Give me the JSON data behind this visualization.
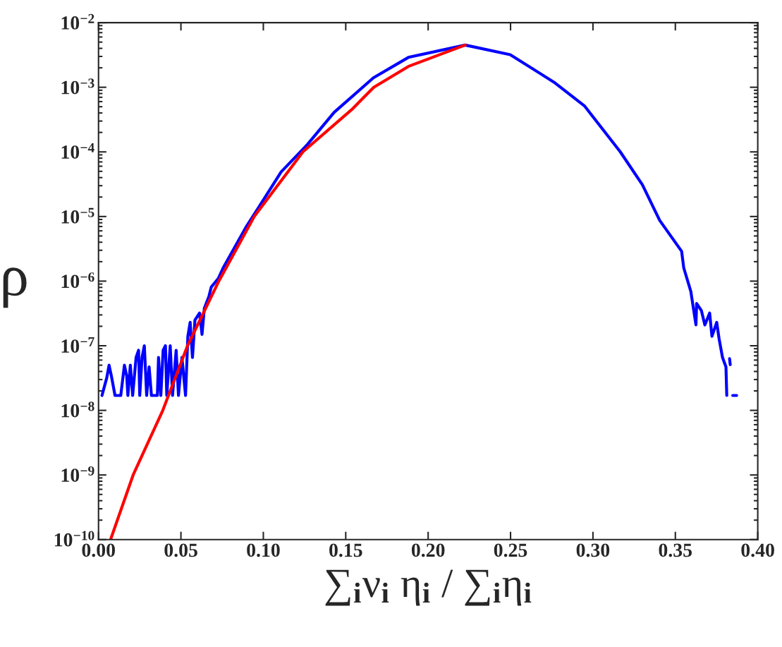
{
  "chart_data": {
    "type": "line",
    "xlabel": "∑$_{i}$ν$_{i}$ η$_{i}$ / ∑$_{i}$η$_{i}$",
    "ylabel": "ρ",
    "log": "y",
    "grid": false,
    "legend": false,
    "marker": "none",
    "line_style": "solid",
    "xlim": [
      0,
      0.4
    ],
    "xticks": [
      {
        "value": 0,
        "label": "0.00"
      },
      {
        "value": 0.05,
        "label": "0.05"
      },
      {
        "value": 0.1,
        "label": "0.10"
      },
      {
        "value": 0.15,
        "label": "0.15"
      },
      {
        "value": 0.2,
        "label": "0.20"
      },
      {
        "value": 0.25,
        "label": "0.25"
      },
      {
        "value": 0.3,
        "label": "0.30"
      },
      {
        "value": 0.35,
        "label": "0.35"
      },
      {
        "value": 0.4,
        "label": "0.40"
      }
    ],
    "ylim": [
      1e-10,
      0.01
    ],
    "yticks": [
      {
        "value": 1e-10,
        "label": "10$^{−10}$"
      },
      {
        "value": 1e-09,
        "label": "10$^{−9}$"
      },
      {
        "value": 1e-08,
        "label": "10$^{−8}$"
      },
      {
        "value": 1e-07,
        "label": "10$^{−7}$"
      },
      {
        "value": 1e-06,
        "label": "10$^{−6}$"
      },
      {
        "value": 1e-05,
        "label": "10$^{−5}$"
      },
      {
        "value": 0.0001,
        "label": "10$^{−4}$"
      },
      {
        "value": 0.001,
        "label": "10$^{−3}$"
      },
      {
        "value": 0.01,
        "label": "10$^{−2}$"
      }
    ],
    "series": [
      {
        "color": "#0000ff",
        "x": [
          0.0021,
          0.005,
          0.0064,
          0.0078,
          0.01,
          0.0135,
          0.0157,
          0.0171,
          0.0178,
          0.0193,
          0.0207,
          0.0228,
          0.0243,
          0.025,
          0.0264,
          0.0278,
          0.0292,
          0.0307,
          0.0321,
          0.0357,
          0.0364,
          0.0378,
          0.0392,
          0.0406,
          0.0414,
          0.0435,
          0.0449,
          0.0471,
          0.0485,
          0.0506,
          0.0528,
          0.0542,
          0.0556,
          0.057,
          0.0585,
          0.0613,
          0.0628,
          0.0642,
          0.067,
          0.0684,
          0.0727,
          0.0756,
          0.0894,
          0.0973,
          0.1108,
          0.1267,
          0.143,
          0.1668,
          0.188,
          0.2225,
          0.2498,
          0.2763,
          0.295,
          0.3166,
          0.33,
          0.3405,
          0.3538,
          0.3551,
          0.3594,
          0.3625,
          0.3629,
          0.3658,
          0.3679,
          0.3708,
          0.3722,
          0.3751,
          0.3765,
          0.3786,
          0.3807,
          0.3812,
          0.382,
          0.3829,
          0.3833,
          0.384,
          0.3848,
          0.3872
        ],
        "values": [
          1.7e-08,
          3.2e-08,
          5e-08,
          3.4e-08,
          1.7e-08,
          1.7e-08,
          5e-08,
          3.4e-08,
          1.7e-08,
          5e-08,
          1.7e-08,
          6.6e-08,
          8.5e-08,
          1.7e-08,
          6.6e-08,
          1e-07,
          1.7e-08,
          4.7e-08,
          1.7e-08,
          1.7e-08,
          6.6e-08,
          1.7e-08,
          8.5e-08,
          1e-07,
          1.7e-08,
          1e-07,
          1.7e-08,
          8.5e-08,
          1.7e-08,
          6.6e-08,
          1.7e-08,
          1.4e-07,
          2.3e-07,
          6.6e-08,
          2.5e-07,
          3.2e-07,
          1.5e-07,
          3.8e-07,
          5.8e-07,
          8.1e-07,
          1.1e-06,
          1.6e-06,
          6.8e-06,
          1.4e-05,
          4.9e-05,
          0.00013,
          0.00041,
          0.0014,
          0.0029,
          0.0045,
          0.0032,
          0.0012,
          0.00051,
          0.0001,
          3.1e-05,
          8.7e-06,
          2.9e-06,
          1.6e-06,
          6.9e-07,
          2.1e-07,
          4.5e-07,
          3.5e-07,
          2.1e-07,
          3.2e-07,
          1.4e-07,
          2.3e-07,
          1.3e-07,
          6.6e-08,
          4.7e-08,
          1.7e-08,
          null,
          6.3e-08,
          5.1e-08,
          null,
          1.7e-08,
          1.7e-08
        ]
      },
      {
        "color": "#ff0000",
        "x": [
          0.0073,
          0.021,
          0.039,
          0.054,
          0.073,
          0.0945,
          0.124,
          0.1536,
          0.167,
          0.188,
          0.2225
        ],
        "values": [
          1e-10,
          1e-09,
          1e-08,
          1e-07,
          1e-06,
          1e-05,
          0.0001,
          0.00045,
          0.001,
          0.0021,
          0.0045
        ]
      }
    ]
  }
}
